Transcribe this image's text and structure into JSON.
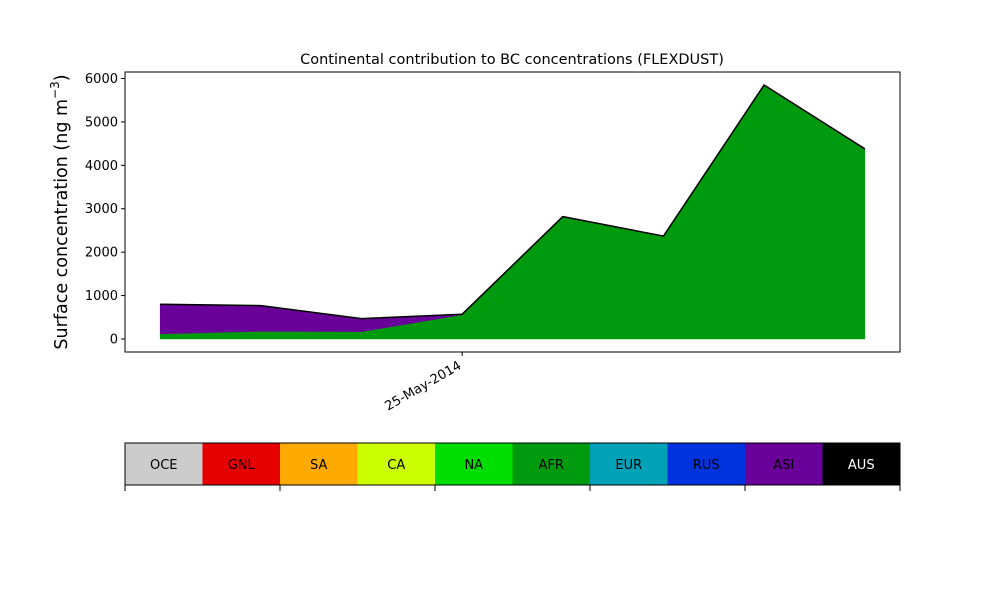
{
  "chart_data": {
    "type": "area",
    "stacked": true,
    "title": "Continental contribution to BC concentrations (FLEXDUST)",
    "ylabel": "Surface concentration (ng m",
    "ylabel_sup": "−3",
    "ylabel_close": ")",
    "xlabel": "",
    "ylim": [
      -300,
      6150
    ],
    "yticks": [
      0,
      1000,
      2000,
      3000,
      4000,
      5000,
      6000
    ],
    "x_ticks": [
      {
        "x": 3,
        "label": "25-May-2014"
      }
    ],
    "xlim": [
      -0.35,
      7.35
    ],
    "grid": false,
    "x": [
      0,
      1,
      2,
      3,
      4,
      5,
      6,
      7
    ],
    "series": [
      {
        "name": "AFR",
        "color": "#009a0e",
        "values": [
          120,
          180,
          170,
          560,
          2820,
          2370,
          5850,
          4370
        ]
      },
      {
        "name": "ASI",
        "color": "#6a009a",
        "values": [
          680,
          590,
          300,
          10,
          0,
          0,
          0,
          10
        ]
      }
    ],
    "legend": {
      "placement": "bottom",
      "entries": [
        {
          "label": "OCE",
          "color": "#cccccc",
          "text_color": "#000000"
        },
        {
          "label": "GNL",
          "color": "#e60000",
          "text_color": "#000000"
        },
        {
          "label": "SA",
          "color": "#ffaa00",
          "text_color": "#000000"
        },
        {
          "label": "CA",
          "color": "#ccff00",
          "text_color": "#000000"
        },
        {
          "label": "NA",
          "color": "#00dd00",
          "text_color": "#000000"
        },
        {
          "label": "AFR",
          "color": "#009a0e",
          "text_color": "#000000"
        },
        {
          "label": "EUR",
          "color": "#00a2b8",
          "text_color": "#000000"
        },
        {
          "label": "RUS",
          "color": "#0033dd",
          "text_color": "#000000"
        },
        {
          "label": "ASI",
          "color": "#6a009a",
          "text_color": "#000000"
        },
        {
          "label": "AUS",
          "color": "#000000",
          "text_color": "#ffffff"
        }
      ]
    }
  }
}
